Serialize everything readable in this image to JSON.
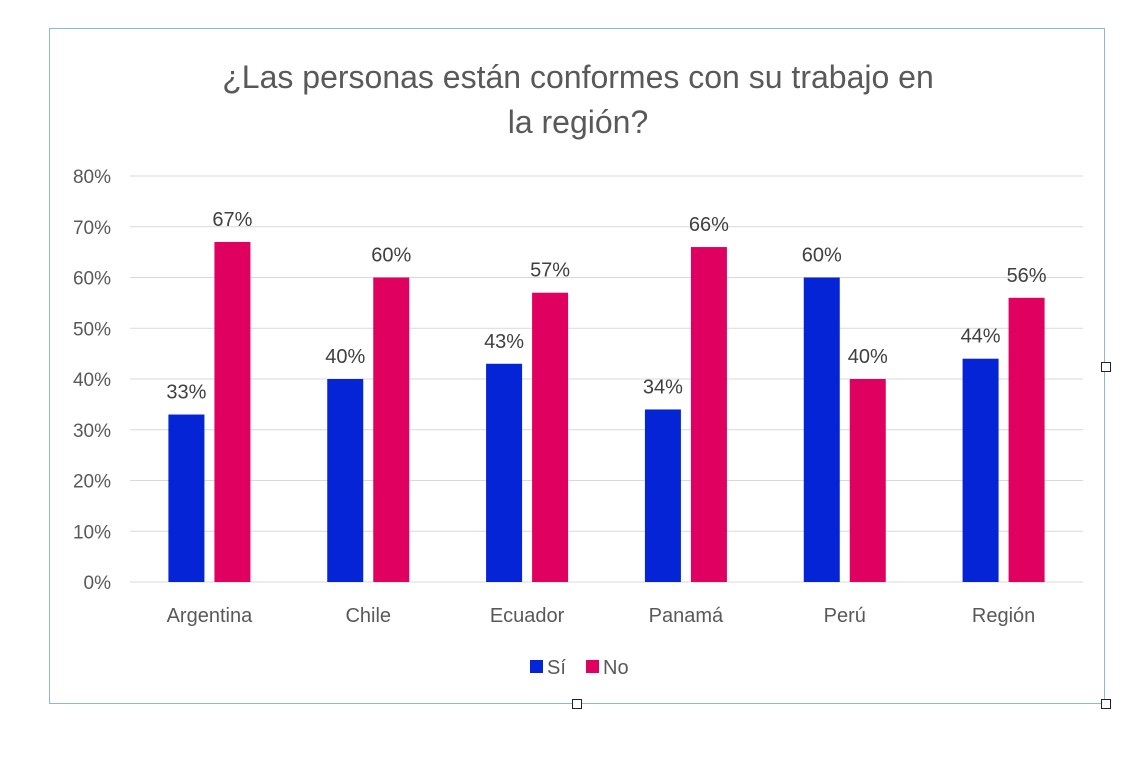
{
  "chart_data": {
    "type": "bar",
    "title_lines": [
      "¿Las personas están conformes con su trabajo en",
      "la región?"
    ],
    "categories": [
      "Argentina",
      "Chile",
      "Ecuador",
      "Panamá",
      "Perú",
      "Región"
    ],
    "series": [
      {
        "name": "Sí",
        "color": "#0524D6",
        "values": [
          33,
          40,
          43,
          34,
          60,
          44
        ],
        "labels": [
          "33%",
          "40%",
          "43%",
          "34%",
          "60%",
          "44%"
        ]
      },
      {
        "name": "No",
        "color": "#E0005F",
        "values": [
          67,
          60,
          57,
          66,
          40,
          56
        ],
        "labels": [
          "67%",
          "60%",
          "57%",
          "66%",
          "40%",
          "56%"
        ]
      }
    ],
    "ylim": [
      0,
      80
    ],
    "yticks": [
      0,
      10,
      20,
      30,
      40,
      50,
      60,
      70,
      80
    ],
    "ytick_labels": [
      "0%",
      "10%",
      "20%",
      "30%",
      "40%",
      "50%",
      "60%",
      "70%",
      "80%"
    ],
    "grid": true,
    "legend_position": "bottom",
    "gridline_color": "#d9d9d9"
  }
}
